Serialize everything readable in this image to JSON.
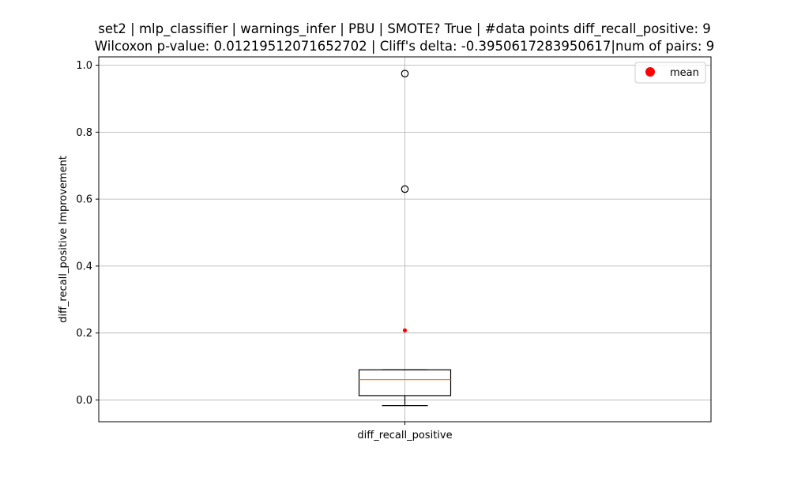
{
  "chart_data": {
    "type": "box",
    "title_line1": "set2 | mlp_classifier | warnings_infer | PBU | SMOTE? True | #data points diff_recall_positive: 9",
    "title_line2": "Wilcoxon p-value: 0.01219512071652702 | Cliff's delta: -0.3950617283950617|num of pairs: 9",
    "xlabel": "",
    "ylabel": "diff_recall_positive Improvement",
    "categories": [
      "diff_recall_positive"
    ],
    "ylim": [
      -0.065,
      1.025
    ],
    "yticks": [
      0.0,
      0.2,
      0.4,
      0.6,
      0.8,
      1.0
    ],
    "ytick_labels": [
      "0.0",
      "0.2",
      "0.4",
      "0.6",
      "0.8",
      "1.0"
    ],
    "grid": true,
    "legend": {
      "position": "top-right",
      "entries": [
        {
          "label": "mean",
          "color": "#ff0000"
        }
      ]
    },
    "box": {
      "whisker_low": -0.017,
      "q1": 0.013,
      "median": 0.061,
      "q3": 0.09,
      "whisker_high": 0.09,
      "mean": 0.208,
      "outliers": [
        0.63,
        0.975
      ]
    },
    "colors": {
      "median": "#ff7f0e",
      "mean": "#ff0000",
      "box": "#000000",
      "grid": "#b0b0b0"
    }
  }
}
